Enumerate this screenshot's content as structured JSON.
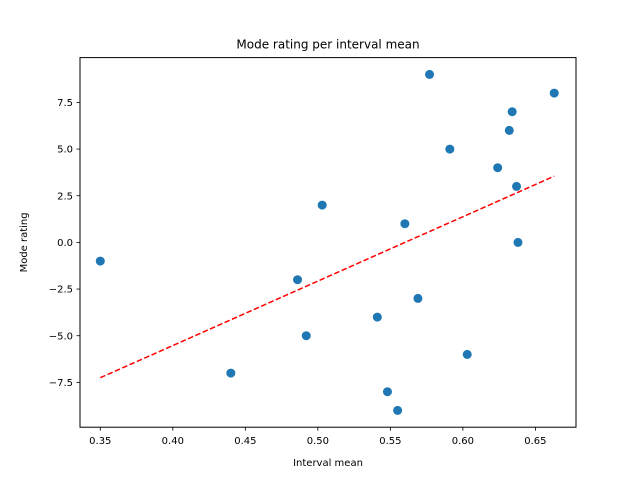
{
  "chart_data": {
    "type": "scatter",
    "title": "Mode rating per interval mean",
    "xlabel": "Interval mean",
    "ylabel": "Mode rating",
    "xlim": [
      0.336,
      0.678
    ],
    "ylim": [
      -9.9,
      9.9
    ],
    "xticks": [
      0.35,
      0.4,
      0.45,
      0.5,
      0.55,
      0.6,
      0.65
    ],
    "xtick_labels": [
      "0.35",
      "0.40",
      "0.45",
      "0.50",
      "0.55",
      "0.60",
      "0.65"
    ],
    "yticks": [
      -7.5,
      -5.0,
      -2.5,
      0.0,
      2.5,
      5.0,
      7.5
    ],
    "ytick_labels": [
      "−7.5",
      "−5.0",
      "−2.5",
      "0.0",
      "2.5",
      "5.0",
      "7.5"
    ],
    "grid": false,
    "legend": "none",
    "series": [
      {
        "kind": "points",
        "color": "#1f77b4",
        "points": [
          {
            "x": 0.35,
            "y": -1
          },
          {
            "x": 0.44,
            "y": -7
          },
          {
            "x": 0.486,
            "y": -2
          },
          {
            "x": 0.492,
            "y": -5
          },
          {
            "x": 0.503,
            "y": 2
          },
          {
            "x": 0.541,
            "y": -4
          },
          {
            "x": 0.548,
            "y": -8
          },
          {
            "x": 0.555,
            "y": -9
          },
          {
            "x": 0.56,
            "y": 1
          },
          {
            "x": 0.569,
            "y": -3
          },
          {
            "x": 0.577,
            "y": 9
          },
          {
            "x": 0.591,
            "y": 5
          },
          {
            "x": 0.603,
            "y": -6
          },
          {
            "x": 0.624,
            "y": 4
          },
          {
            "x": 0.632,
            "y": 6
          },
          {
            "x": 0.634,
            "y": 7
          },
          {
            "x": 0.637,
            "y": 3
          },
          {
            "x": 0.638,
            "y": 0
          },
          {
            "x": 0.663,
            "y": 8
          }
        ]
      },
      {
        "kind": "trend-line",
        "color": "#ff0000",
        "style": "dashed",
        "points": [
          {
            "x": 0.35,
            "y": -7.25
          },
          {
            "x": 0.663,
            "y": 3.55
          }
        ]
      }
    ]
  }
}
